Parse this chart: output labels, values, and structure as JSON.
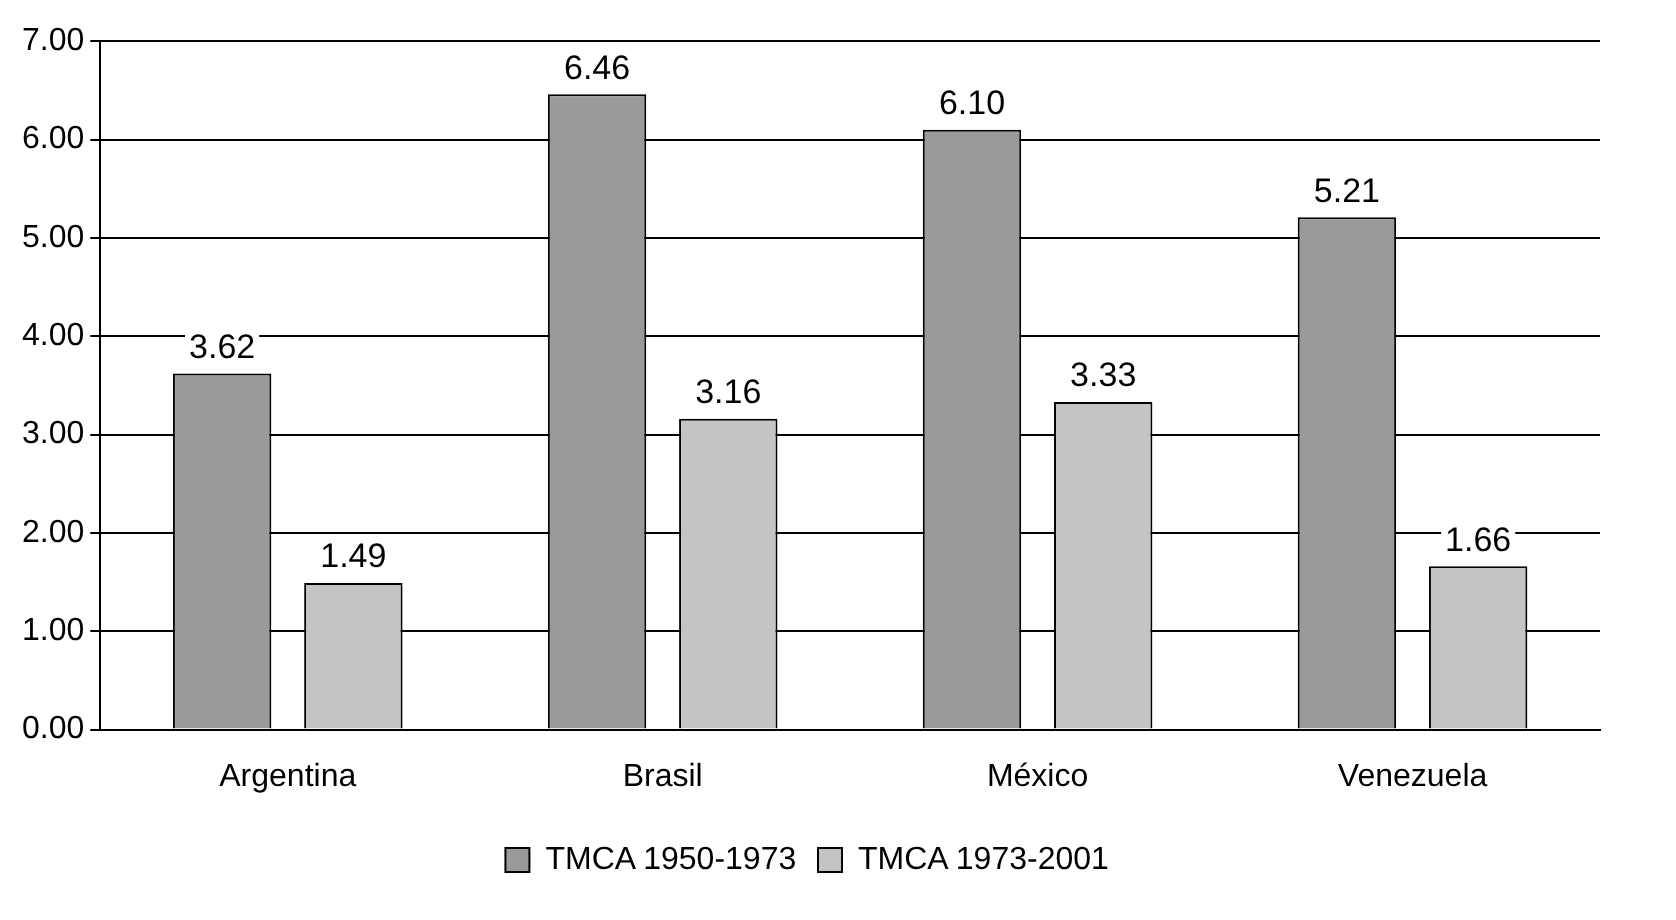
{
  "chart_data": {
    "type": "bar",
    "categories": [
      "Argentina",
      "Brasil",
      "México",
      "Venezuela"
    ],
    "series": [
      {
        "name": "TMCA 1950-1973",
        "color": "#9a9a9a",
        "values": [
          3.62,
          6.46,
          6.1,
          5.21
        ],
        "value_labels": [
          "3.62",
          "6.46",
          "6.10",
          "5.21"
        ]
      },
      {
        "name": "TMCA 1973-2001",
        "color": "#c4c4c4",
        "values": [
          1.49,
          3.16,
          3.33,
          1.66
        ],
        "value_labels": [
          "1.49",
          "3.16",
          "3.33",
          "1.66"
        ]
      }
    ],
    "ylim": [
      0,
      7
    ],
    "yticks": [
      {
        "value": 0,
        "label": "0.00"
      },
      {
        "value": 1,
        "label": "1.00"
      },
      {
        "value": 2,
        "label": "2.00"
      },
      {
        "value": 3,
        "label": "3.00"
      },
      {
        "value": 4,
        "label": "4.00"
      },
      {
        "value": 5,
        "label": "5.00"
      },
      {
        "value": 6,
        "label": "6.00"
      },
      {
        "value": 7,
        "label": "7.00"
      }
    ],
    "grid": "y",
    "legend": "bottom"
  }
}
